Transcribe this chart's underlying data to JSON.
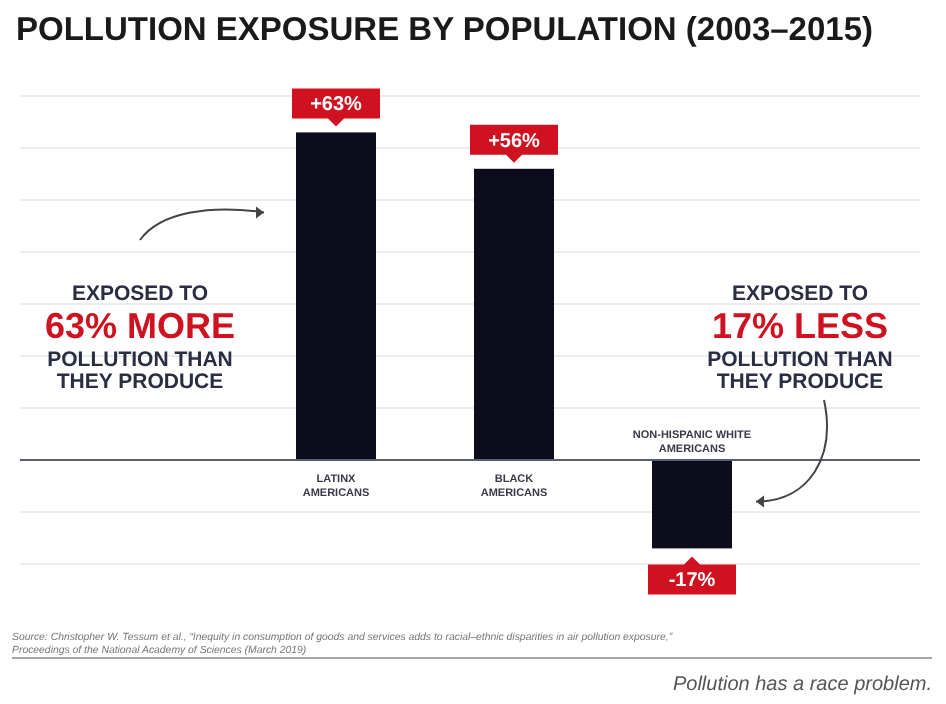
{
  "chart_data": {
    "type": "bar",
    "title": "POLLUTION EXPOSURE BY POPULATION (2003–2015)",
    "categories": [
      "LATINX AMERICANS",
      "BLACK AMERICANS",
      "NON-HISPANIC WHITE AMERICANS"
    ],
    "values": [
      63,
      56,
      -17
    ],
    "color": "#0d0c1c",
    "value_labels": [
      "+63%",
      "+56%",
      "-17%"
    ],
    "ylim": [
      -20,
      70
    ],
    "yticks": [
      {
        "value": -20,
        "label": null
      },
      {
        "value": -10,
        "label": null
      },
      {
        "value": 0,
        "label": null
      },
      {
        "value": 10,
        "label": null
      },
      {
        "value": 20,
        "label": null
      },
      {
        "value": 30,
        "label": null
      },
      {
        "value": 40,
        "label": null
      },
      {
        "value": 50,
        "label": null
      },
      {
        "value": 60,
        "label": null
      },
      {
        "value": 70,
        "label": null
      }
    ],
    "grid": "y",
    "tick_labels": "x",
    "annotations": [
      "EXPOSED TO\n63% MORE\nPOLLUTION THAN\nTHEY PRODUCE",
      "EXPOSED TO\n17% LESS\nPOLLUTION THAN\nTHEY PRODUCE",
      "Source: Christopher W. Tessum et al., “Inequity in consumption of goods and services adds to racial–ethnic disparities in air pollution exposure,”\nProceedings of the National Academy of Sciences (March 2019)",
      "Pollution has a race problem."
    ]
  }
}
